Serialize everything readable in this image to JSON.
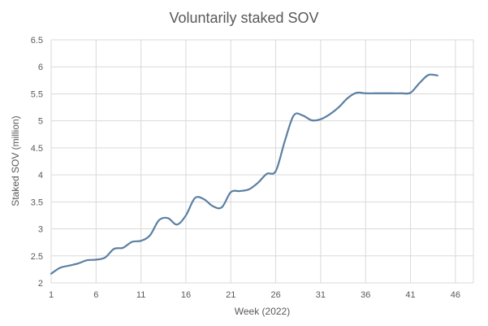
{
  "chart_data": {
    "type": "line",
    "title": "Voluntarily staked SOV",
    "xlabel": "Week (2022)",
    "ylabel": "Staked SOV (million)",
    "xlim": [
      1,
      48
    ],
    "ylim": [
      2,
      6.5
    ],
    "xticks": [
      1,
      6,
      11,
      16,
      21,
      26,
      31,
      36,
      41,
      46
    ],
    "xtick_labels": [
      "1",
      "6",
      "11",
      "16",
      "21",
      "26",
      "31",
      "36",
      "41",
      "46"
    ],
    "yticks": [
      2,
      2.5,
      3,
      3.5,
      4,
      4.5,
      5,
      5.5,
      6,
      6.5
    ],
    "ytick_labels": [
      "2",
      "2.5",
      "3",
      "3.5",
      "4",
      "4.5",
      "5",
      "5.5",
      "6",
      "6.5"
    ],
    "grid": true,
    "line_color": "#5b7fa3",
    "series": [
      {
        "name": "Voluntarily staked SOV",
        "x": [
          1,
          2,
          3,
          4,
          5,
          6,
          7,
          8,
          9,
          10,
          11,
          12,
          13,
          14,
          15,
          16,
          17,
          18,
          19,
          20,
          21,
          22,
          23,
          24,
          25,
          26,
          27,
          28,
          29,
          30,
          31,
          32,
          33,
          34,
          35,
          36,
          37,
          38,
          39,
          40,
          41,
          42,
          43,
          44
        ],
        "values": [
          2.17,
          2.28,
          2.32,
          2.36,
          2.42,
          2.43,
          2.47,
          2.63,
          2.65,
          2.76,
          2.78,
          2.88,
          3.16,
          3.2,
          3.08,
          3.25,
          3.57,
          3.55,
          3.42,
          3.4,
          3.68,
          3.7,
          3.73,
          3.85,
          4.02,
          4.07,
          4.62,
          5.1,
          5.1,
          5.01,
          5.03,
          5.12,
          5.25,
          5.42,
          5.52,
          5.51,
          5.51,
          5.51,
          5.51,
          5.51,
          5.52,
          5.7,
          5.85,
          5.84
        ]
      }
    ]
  }
}
